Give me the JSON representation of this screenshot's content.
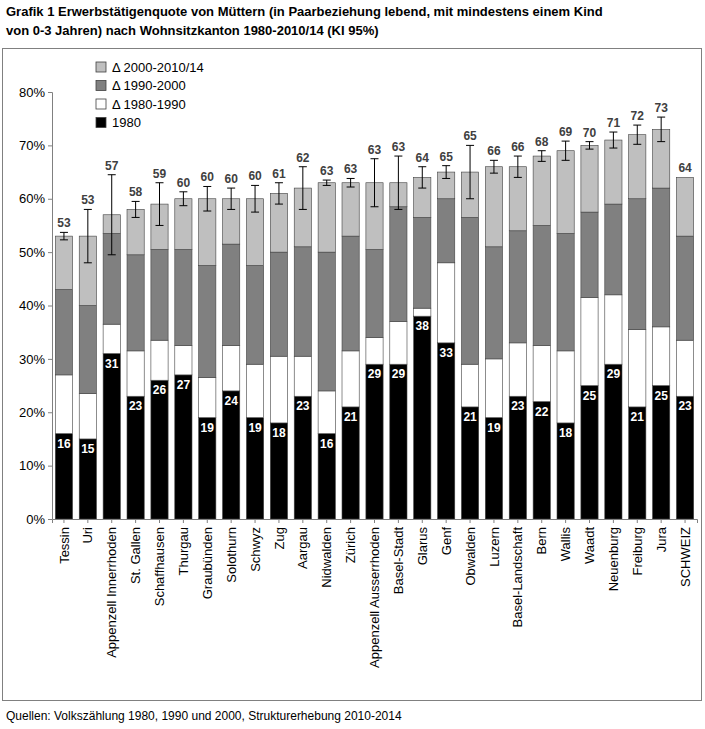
{
  "chart_data": {
    "type": "bar",
    "stacked": true,
    "title": [
      "Grafik 1 Erwerbstätigenquote von Müttern (in Paarbeziehung lebend, mit mindestens einem Kind",
      "von 0-3 Jahren) nach Wohnsitzkanton 1980-2010/14 (KI 95%)"
    ],
    "source": "Quellen: Volkszählung 1980, 1990 und 2000, Strukturerhebung 2010-2014",
    "categories": [
      "Tessin",
      "Uri",
      "Appenzell Innerrhoden",
      "St. Gallen",
      "Schaffhausen",
      "Thurgau",
      "Graubünden",
      "Solothurn",
      "Schwyz",
      "Zug",
      "Aargau",
      "Nidwalden",
      "Zürich",
      "Appenzell Ausserrhoden",
      "Basel-Stadt",
      "Glarus",
      "Genf",
      "Obwalden",
      "Luzern",
      "Basel-Landschaft",
      "Bern",
      "Wallis",
      "Waadt",
      "Neuenburg",
      "Freiburg",
      "Jura",
      "SCHWEIZ"
    ],
    "series": [
      {
        "name": "1980",
        "color": "#000000",
        "data_labels": true,
        "values": [
          16,
          15,
          31,
          23,
          26,
          27,
          19,
          24,
          19,
          18,
          23,
          16,
          21,
          29,
          29,
          38,
          33,
          21,
          19,
          23,
          22,
          18,
          25,
          29,
          21,
          25,
          23
        ]
      },
      {
        "name": "Δ 1980-1990",
        "color": "#ffffff",
        "values": [
          11,
          8.5,
          5.5,
          8.5,
          7.5,
          5.5,
          7.5,
          8.5,
          10,
          12.5,
          7.5,
          8,
          10.5,
          5,
          8,
          1.5,
          15,
          8,
          11,
          10,
          10.5,
          13.5,
          16.5,
          13,
          14.5,
          11,
          10.5
        ]
      },
      {
        "name": "Δ 1990-2000",
        "color": "#808080",
        "values": [
          16,
          16.5,
          17,
          18,
          17,
          18,
          21,
          19,
          18.5,
          19.5,
          20.5,
          26,
          21.5,
          16.5,
          21.5,
          17,
          12,
          27.5,
          21,
          21,
          22.5,
          22,
          16,
          17,
          24.5,
          26,
          19.5
        ]
      },
      {
        "name": "Δ 2000-2010/14",
        "color": "#bfbfbf",
        "values": [
          10,
          13,
          3.5,
          8.5,
          8.5,
          9.5,
          12.5,
          8.5,
          12.5,
          11,
          11,
          13,
          10,
          12.5,
          4.5,
          7.5,
          5,
          8.5,
          15,
          12,
          13,
          15.5,
          12.5,
          12,
          12,
          11,
          11
        ]
      }
    ],
    "totals": [
      53,
      53,
      57,
      58,
      59,
      60,
      60,
      60,
      60,
      61,
      62,
      63,
      63,
      63,
      63,
      64,
      65,
      65,
      66,
      66,
      68,
      69,
      70,
      71,
      72,
      73,
      64
    ],
    "errors": [
      0.7,
      5,
      7.5,
      1.5,
      4,
      1.3,
      2.3,
      2,
      2.5,
      2,
      4,
      0.5,
      0.8,
      4.5,
      5,
      2,
      1.2,
      5,
      1.2,
      2,
      1,
      1.8,
      0.7,
      1.5,
      1.8,
      2.3,
      null
    ],
    "ylim": [
      0,
      80
    ],
    "yticks": [
      {
        "value": 0,
        "label": "0%"
      },
      {
        "value": 10,
        "label": "10%"
      },
      {
        "value": 20,
        "label": "20%"
      },
      {
        "value": 30,
        "label": "30%"
      },
      {
        "value": 40,
        "label": "40%"
      },
      {
        "value": 50,
        "label": "50%"
      },
      {
        "value": 60,
        "label": "60%"
      },
      {
        "value": 70,
        "label": "70%"
      },
      {
        "value": 80,
        "label": "80%"
      }
    ],
    "grid": false,
    "legend": "upper left"
  }
}
